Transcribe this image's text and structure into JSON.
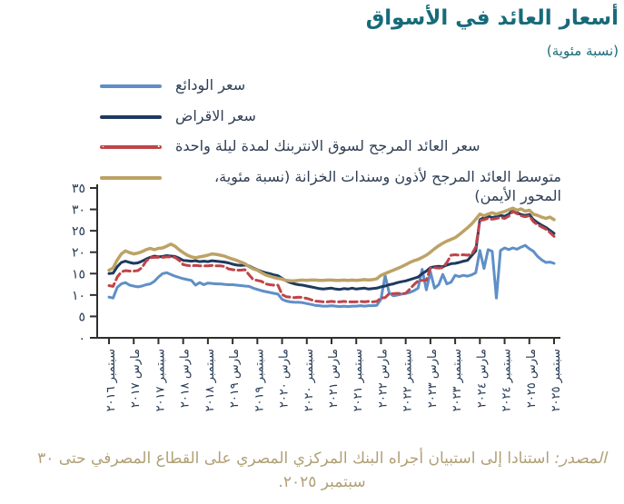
{
  "title": "أسعار العائد في الأسواق",
  "subtitle": "(نسبة مئوية)",
  "colors": {
    "title_teal": "#176b79",
    "deposit_blue": "#5f8fc7",
    "lending_navy": "#1e3a5f",
    "interbank_red": "#bf4449",
    "treasury_tan": "#bda266",
    "axis": "#2f2f2f",
    "tick_label": "#263a55",
    "source_text": "#b0a076"
  },
  "chart_data": {
    "type": "line",
    "title": "أسعار العائد في الأسواق",
    "subtitle_units": "(نسبة مئوية)",
    "frequency": "monthly",
    "x_start_label": "سبتمبر ٢٠١٦",
    "x_end_label": "سبتمبر ٢٠٢٥",
    "x_tick_interval_months": 6,
    "x_tick_labels": [
      "سبتمبر ٢٠١٦",
      "مارس ٢٠١٧",
      "سبتمبر ٢٠١٧",
      "مارس ٢٠١٨",
      "سبتمبر ٢٠١٨",
      "مارس ٢٠١٩",
      "سبتمبر ٢٠١٩",
      "مارس ٢٠٢٠",
      "سبتمبر ٢٠٢٠",
      "مارس ٢٠٢١",
      "سبتمبر ٢٠٢١",
      "مارس ٢٠٢٢",
      "سبتمبر ٢٠٢٢",
      "مارس ٢٠٢٣",
      "سبتمبر ٢٠٢٣",
      "مارس ٢٠٢٤",
      "سبتمبر ٢٠٢٤",
      "مارس ٢٠٢٥",
      "سبتمبر ٢٠٢٥"
    ],
    "ylim": [
      0,
      35
    ],
    "y_ticks": {
      "values": [
        0,
        5,
        10,
        15,
        20,
        25,
        30,
        35
      ],
      "labels": [
        "٠",
        "٥",
        "١٠",
        "١٥",
        "٢٠",
        "٢٥",
        "٣٠",
        "٣٥"
      ]
    },
    "grid": false,
    "legend_position": "top-left",
    "series": [
      {
        "name": "سعر الودائع",
        "color": "#5f8fc7",
        "dash": "solid",
        "axis": "left",
        "values": [
          9.5,
          9.3,
          11.8,
          12.6,
          12.9,
          12.3,
          12.1,
          11.9,
          12.1,
          12.4,
          12.6,
          13.2,
          14.2,
          15.0,
          15.2,
          14.8,
          14.4,
          14.1,
          13.8,
          13.6,
          13.4,
          12.3,
          12.9,
          12.4,
          12.8,
          12.7,
          12.6,
          12.6,
          12.5,
          12.4,
          12.4,
          12.3,
          12.2,
          12.1,
          12.0,
          11.6,
          11.3,
          11.0,
          10.8,
          10.6,
          10.4,
          10.2,
          9.0,
          8.6,
          8.4,
          8.3,
          8.3,
          8.2,
          8.0,
          7.8,
          7.6,
          7.5,
          7.4,
          7.4,
          7.5,
          7.4,
          7.3,
          7.4,
          7.3,
          7.4,
          7.4,
          7.5,
          7.4,
          7.5,
          7.5,
          7.6,
          9.0,
          14.5,
          10.5,
          9.8,
          10.0,
          10.2,
          10.4,
          10.6,
          11.0,
          11.6,
          16.0,
          11.2,
          15.4,
          11.6,
          12.4,
          14.8,
          12.6,
          13.0,
          14.6,
          14.3,
          14.6,
          14.4,
          14.7,
          15.2,
          20.4,
          16.2,
          20.6,
          20.2,
          9.3,
          20.4,
          21.0,
          20.6,
          21.0,
          20.7,
          21.2,
          21.6,
          20.8,
          20.2,
          19.0,
          18.2,
          17.6,
          17.7,
          17.4
        ]
      },
      {
        "name": "سعر الاقراض",
        "color": "#1e3a5f",
        "dash": "solid",
        "axis": "left",
        "values": [
          15.0,
          15.1,
          16.6,
          17.6,
          17.9,
          17.6,
          17.4,
          17.5,
          17.9,
          18.4,
          18.8,
          19.1,
          18.9,
          19.0,
          19.2,
          19.1,
          19.0,
          18.6,
          18.1,
          18.0,
          17.9,
          18.0,
          17.8,
          17.9,
          17.8,
          18.0,
          17.9,
          17.8,
          17.7,
          17.5,
          17.2,
          17.0,
          16.9,
          17.0,
          16.8,
          16.3,
          15.9,
          15.5,
          15.2,
          15.0,
          14.7,
          14.5,
          13.9,
          13.3,
          12.9,
          12.6,
          12.4,
          12.3,
          12.1,
          11.9,
          11.7,
          11.5,
          11.4,
          11.5,
          11.6,
          11.4,
          11.3,
          11.5,
          11.4,
          11.6,
          11.4,
          11.5,
          11.6,
          11.4,
          11.5,
          11.6,
          11.9,
          12.1,
          12.4,
          12.6,
          12.9,
          13.1,
          13.3,
          13.6,
          13.9,
          14.2,
          15.0,
          15.6,
          16.4,
          16.6,
          16.7,
          16.6,
          17.0,
          17.3,
          17.4,
          17.6,
          17.9,
          18.1,
          19.2,
          20.3,
          27.6,
          28.1,
          28.4,
          28.1,
          28.3,
          28.6,
          28.4,
          28.9,
          29.8,
          29.2,
          28.8,
          28.6,
          28.8,
          27.6,
          26.9,
          26.3,
          25.8,
          25.1,
          24.4
        ]
      },
      {
        "name": "سعر العائد المرجح لسوق الانتربنك لمدة ليلة واحدة",
        "color": "#bf4449",
        "dash": "dashed",
        "axis": "left",
        "values": [
          12.2,
          12.0,
          14.2,
          15.4,
          15.7,
          15.6,
          15.6,
          15.7,
          16.4,
          17.9,
          18.7,
          18.8,
          18.8,
          18.8,
          18.9,
          18.9,
          18.8,
          18.1,
          17.1,
          16.9,
          16.8,
          16.9,
          16.8,
          16.8,
          16.8,
          16.9,
          16.8,
          16.8,
          16.7,
          16.1,
          15.9,
          15.8,
          15.8,
          15.9,
          14.7,
          13.6,
          13.4,
          13.2,
          12.6,
          12.4,
          12.3,
          12.3,
          10.1,
          9.6,
          9.5,
          9.4,
          9.5,
          9.4,
          9.2,
          8.9,
          8.6,
          8.5,
          8.4,
          8.4,
          8.5,
          8.4,
          8.4,
          8.5,
          8.4,
          8.4,
          8.4,
          8.5,
          8.4,
          8.5,
          8.4,
          8.5,
          9.3,
          9.4,
          10.3,
          10.3,
          10.4,
          10.3,
          10.4,
          11.4,
          12.4,
          13.3,
          13.4,
          13.4,
          16.3,
          16.4,
          16.3,
          16.4,
          17.6,
          19.3,
          19.4,
          19.3,
          19.4,
          19.3,
          19.5,
          21.2,
          27.4,
          27.6,
          27.9,
          27.7,
          27.9,
          28.1,
          27.9,
          28.4,
          29.5,
          29.0,
          28.5,
          28.3,
          28.5,
          27.1,
          26.4,
          25.9,
          25.4,
          24.6,
          23.7
        ]
      },
      {
        "name": "متوسط العائد المرجح لأذون وسندات الخزانة (نسبة مئوية، المحور الأيمن)",
        "color": "#bda266",
        "dash": "solid",
        "axis": "right",
        "values": [
          15.8,
          16.3,
          18.2,
          19.6,
          20.3,
          19.9,
          19.6,
          19.8,
          20.1,
          20.6,
          20.9,
          20.6,
          20.9,
          21.0,
          21.4,
          21.9,
          21.4,
          20.6,
          19.9,
          19.3,
          18.9,
          18.7,
          18.9,
          19.1,
          19.3,
          19.6,
          19.5,
          19.3,
          19.1,
          18.7,
          18.4,
          18.1,
          17.7,
          17.3,
          16.6,
          16.1,
          15.8,
          15.2,
          14.7,
          14.4,
          14.1,
          13.9,
          13.7,
          13.4,
          13.3,
          13.3,
          13.4,
          13.5,
          13.4,
          13.5,
          13.5,
          13.4,
          13.4,
          13.5,
          13.5,
          13.4,
          13.4,
          13.5,
          13.4,
          13.5,
          13.4,
          13.5,
          13.6,
          13.5,
          13.6,
          13.8,
          14.6,
          15.0,
          15.4,
          15.8,
          16.2,
          16.6,
          17.1,
          17.6,
          18.0,
          18.3,
          18.8,
          19.3,
          20.0,
          20.8,
          21.5,
          22.1,
          22.6,
          23.0,
          23.4,
          24.1,
          24.9,
          25.7,
          26.6,
          27.7,
          28.9,
          28.5,
          28.9,
          29.2,
          28.9,
          29.2,
          29.5,
          29.9,
          30.3,
          29.8,
          30.1,
          29.6,
          29.8,
          28.9,
          28.6,
          28.2,
          27.9,
          28.2,
          27.6
        ]
      }
    ]
  },
  "source": {
    "prefix": "المصدر:",
    "text": " استنادا إلى استبيان أجراه البنك المركزي المصري على القطاع المصرفي حتى ٣٠ سبتمبر ٢٠٢٥."
  }
}
